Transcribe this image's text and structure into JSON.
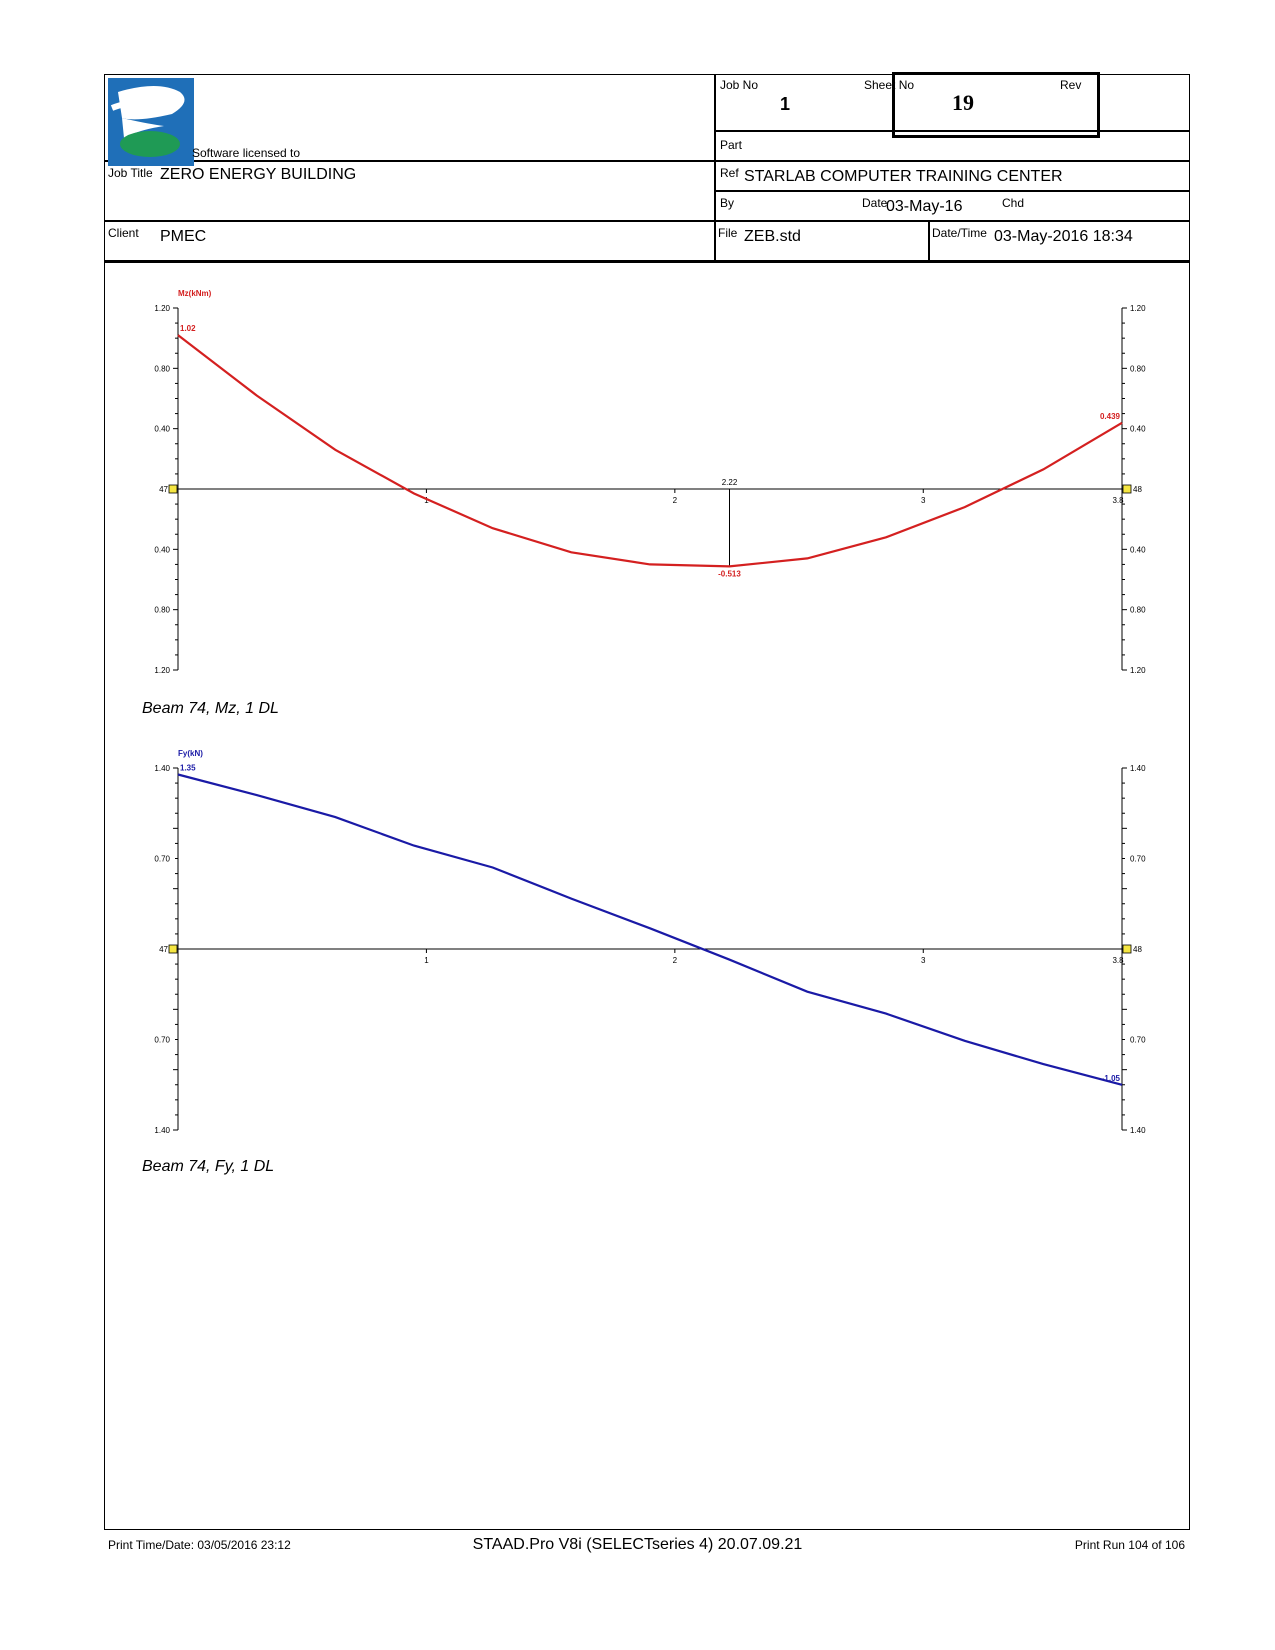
{
  "header": {
    "licensed_text": "Software licensed to",
    "job_no_label": "Job No",
    "job_no": "1",
    "sheet_no_label": "Sheet No",
    "sheet_no": "19",
    "rev_label": "Rev",
    "part_label": "Part",
    "job_title_label": "Job Title",
    "job_title": "ZERO ENERGY BUILDING",
    "ref_label": "Ref",
    "ref": "STARLAB COMPUTER TRAINING CENTER",
    "by_label": "By",
    "date_label": "Date",
    "date": "03-May-16",
    "chd_label": "Chd",
    "client_label": "Client",
    "client": "PMEC",
    "file_label": "File",
    "file": "ZEB.std",
    "datetime_label": "Date/Time",
    "datetime": "03-May-2016 18:34",
    "colors": {
      "logo_blue": "#1f6fb8",
      "logo_green": "#1f9a55"
    }
  },
  "footer": {
    "print_time": "Print Time/Date: 03/05/2016 23:12",
    "software": "STAAD.Pro V8i (SELECTseries 4) 20.07.09.21",
    "print_run": "Print Run 104 of 106"
  },
  "chart_data": [
    {
      "type": "line",
      "caption": "Beam 74, Mz, 1 DL",
      "ylabel": "Mz(kNm)",
      "color": "#d42020",
      "x": [
        0,
        0.3167,
        0.6333,
        0.95,
        1.2667,
        1.5833,
        1.9,
        2.22,
        2.5333,
        2.85,
        3.1667,
        3.4833,
        3.8
      ],
      "values": [
        1.02,
        0.62,
        0.26,
        -0.03,
        -0.26,
        -0.42,
        -0.5,
        -0.513,
        -0.46,
        -0.32,
        -0.12,
        0.13,
        0.439
      ],
      "ylim": [
        -1.2,
        1.2
      ],
      "xlim": [
        0,
        3.8
      ],
      "y_tick_labels": [
        "1.20",
        "0.80",
        "0.40",
        "0.40",
        "0.80",
        "1.20"
      ],
      "x_tick_labels": [
        "1",
        "2",
        "3",
        "3.8"
      ],
      "start_node": "47",
      "end_node": "48",
      "annotations": [
        {
          "x": 0,
          "y": 1.02,
          "text": "1.02"
        },
        {
          "x": 3.8,
          "y": 0.439,
          "text": "0.439"
        },
        {
          "x": 2.22,
          "y": -0.513,
          "text": "-0.513"
        }
      ],
      "marker": {
        "x": 2.22,
        "text": "2.22"
      }
    },
    {
      "type": "line",
      "caption": "Beam 74, Fy, 1 DL",
      "ylabel": "Fy(kN)",
      "color": "#1a1aa6",
      "x": [
        0,
        0.3167,
        0.6333,
        0.95,
        1.2667,
        1.5833,
        1.9,
        2.2167,
        2.5333,
        2.85,
        3.1667,
        3.4833,
        3.8
      ],
      "values": [
        1.35,
        1.19,
        1.02,
        0.8,
        0.63,
        0.39,
        0.16,
        -0.08,
        -0.33,
        -0.5,
        -0.71,
        -0.89,
        -1.05
      ],
      "ylim": [
        -1.4,
        1.4
      ],
      "xlim": [
        0,
        3.8
      ],
      "y_tick_labels": [
        "1.40",
        "0.70",
        "0.70",
        "1.40"
      ],
      "x_tick_labels": [
        "1",
        "2",
        "3",
        "3.8"
      ],
      "start_node": "47",
      "end_node": "48",
      "annotations": [
        {
          "x": 0,
          "y": 1.35,
          "text": "1.35"
        },
        {
          "x": 3.8,
          "y": -1.05,
          "text": "-1.05"
        }
      ]
    }
  ]
}
